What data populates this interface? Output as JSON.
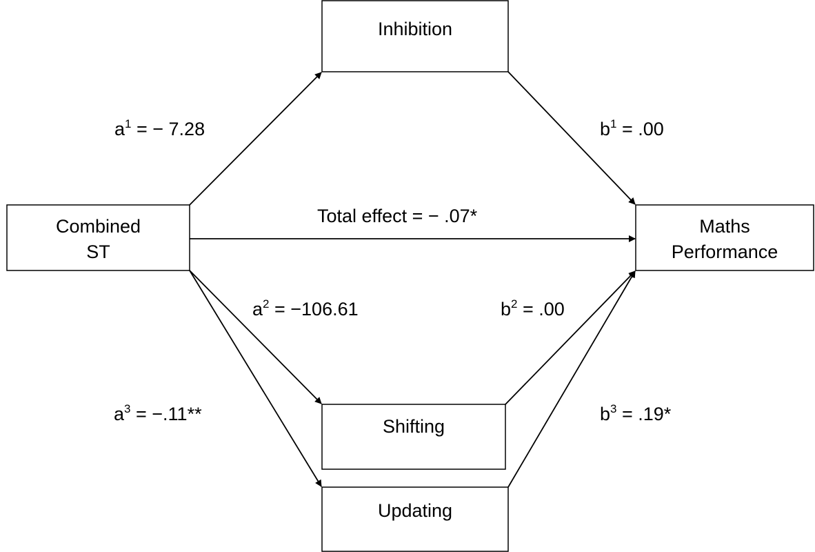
{
  "nodes": [
    {
      "lines": [
        "Inhibition"
      ]
    },
    {
      "lines": [
        "Combined",
        "ST"
      ]
    },
    {
      "lines": [
        "Maths",
        "Performance"
      ]
    },
    {
      "lines": [
        "Shifting"
      ]
    },
    {
      "lines": [
        "Updating"
      ]
    }
  ],
  "edges": [
    {
      "base": "a",
      "sup": "1",
      "rest": " = − 7.28"
    },
    {
      "base": "b",
      "sup": "1",
      "rest": " = .00"
    },
    {
      "text": "Total effect = − .07*"
    },
    {
      "base": "a",
      "sup": "2",
      "rest": " = −106.61"
    },
    {
      "base": "b",
      "sup": "2",
      "rest": " = .00"
    },
    {
      "base": "a",
      "sup": "3",
      "rest": " = −.11**"
    },
    {
      "base": "b",
      "sup": "3",
      "rest": " = .19*"
    }
  ]
}
